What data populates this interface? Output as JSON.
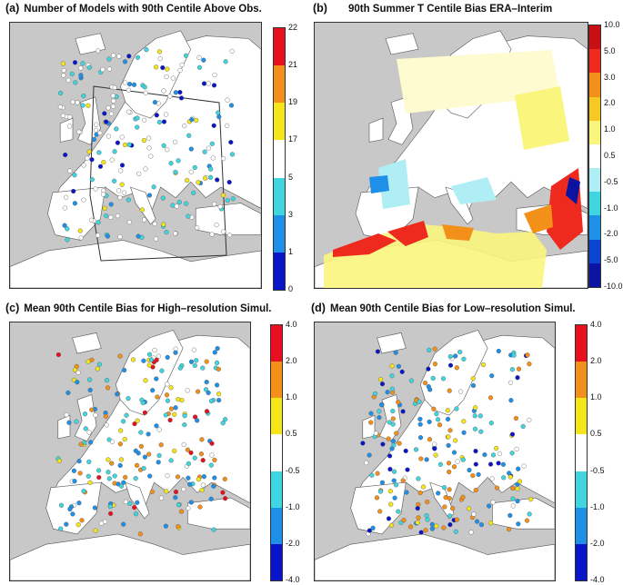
{
  "panels": [
    {
      "id": "a",
      "label": "(a)",
      "title": "Number of Models with 90th Centile Above Obs.",
      "colorbar": {
        "ticks": [
          "22",
          "21",
          "19",
          "17",
          "5",
          "3",
          "1",
          "0"
        ],
        "colors": [
          "#e8101e",
          "#f39019",
          "#f5e619",
          "#ffffff",
          "#3fd6e0",
          "#1e90e8",
          "#0a14c8"
        ]
      }
    },
    {
      "id": "b",
      "label": "(b)",
      "title": "90th Summer T Centile Bias ERA–Interim",
      "colorbar": {
        "ticks": [
          "10.0",
          "5.0",
          "3.0",
          "2.0",
          "1.0",
          "0.5",
          "-0.5",
          "-1.0",
          "-2.0",
          "-5.0",
          "-10.0"
        ],
        "colors": [
          "#c80f14",
          "#ee2a1e",
          "#f39019",
          "#f5c823",
          "#faf57d",
          "#ffffff",
          "#aeeef4",
          "#3fd6e0",
          "#1e90e8",
          "#0a46d2",
          "#0a14a0"
        ]
      }
    },
    {
      "id": "c",
      "label": "(c)",
      "title": "Mean 90th Centile Bias for High–resolution Simul.",
      "colorbar": {
        "ticks": [
          "4.0",
          "2.0",
          "1.0",
          "0.5",
          "-0.5",
          "-1.0",
          "-2.0",
          "-4.0"
        ],
        "colors": [
          "#e8101e",
          "#f39019",
          "#f5e619",
          "#ffffff",
          "#3fd6e0",
          "#1e90e8",
          "#0a14c8"
        ]
      }
    },
    {
      "id": "d",
      "label": "(d)",
      "title": "Mean 90th Centile Bias for Low–resolution Simul.",
      "colorbar": {
        "ticks": [
          "4.0",
          "2.0",
          "1.0",
          "0.5",
          "-0.5",
          "-1.0",
          "-2.0",
          "-4.0"
        ],
        "colors": [
          "#e8101e",
          "#f39019",
          "#f5e619",
          "#ffffff",
          "#3fd6e0",
          "#1e90e8",
          "#0a14c8"
        ]
      }
    }
  ],
  "map_colors": {
    "ocean": "#ffffff",
    "land": "#c8c8c8",
    "sea": "#c8c8c8"
  }
}
